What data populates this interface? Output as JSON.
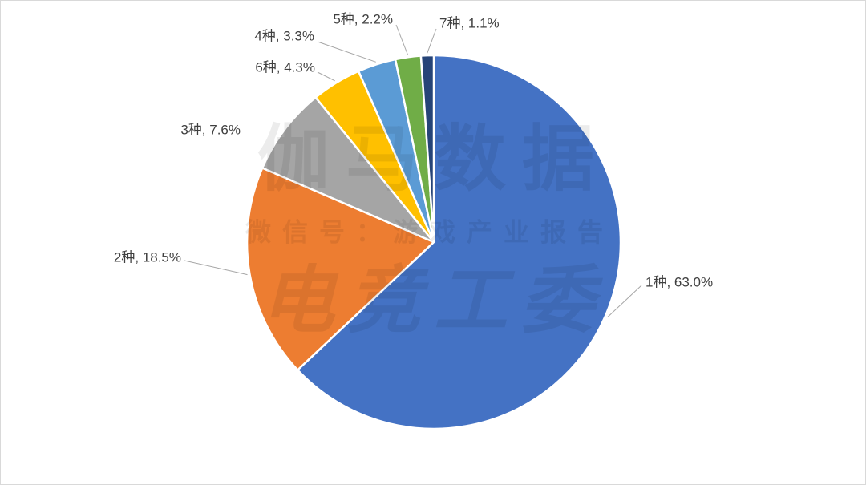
{
  "chart_data": {
    "type": "pie",
    "values": [
      63.0,
      18.5,
      7.6,
      4.3,
      3.3,
      2.2,
      1.1
    ],
    "value_labels": [
      "1种, 63.0%",
      "2种, 18.5%",
      "3种, 7.6%",
      "6种, 4.3%",
      "4种, 3.3%",
      "5种, 2.2%",
      "7种, 1.1%"
    ],
    "colors": [
      "#4472c4",
      "#ed7d31",
      "#a5a5a5",
      "#ffc000",
      "#5b9bd5",
      "#70ad47",
      "#264478"
    ],
    "watermark": [
      "伽马数据",
      "微信号：游戏产业报告",
      "电竞工委"
    ]
  }
}
